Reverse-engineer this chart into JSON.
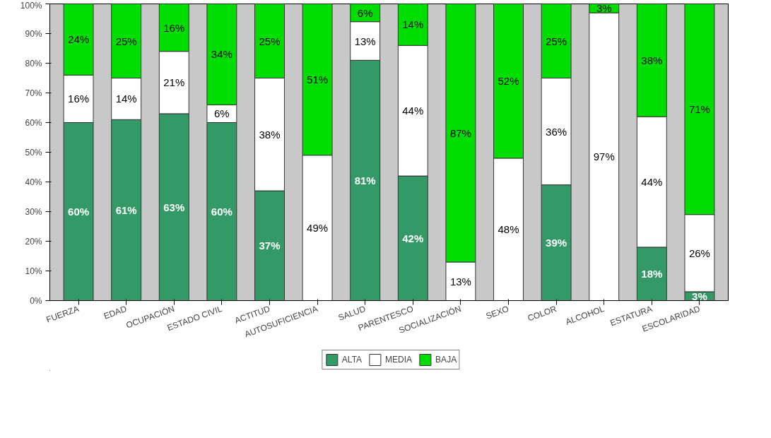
{
  "chart_data": {
    "type": "bar",
    "stacked": true,
    "categories": [
      "FUERZA",
      "EDAD",
      "OCUPACIÓN",
      "ESTADO CIVIL",
      "ACTITUD",
      "AUTOSUFICIENCIA",
      "SALUD",
      "PARENTESCO",
      "SOCIALIZACIÓN",
      "SEXO",
      "COLOR",
      "ALCOHOL",
      "ESTATURA",
      "ESCOLARIDAD"
    ],
    "series": [
      {
        "name": "ALTA",
        "color": "#339966",
        "values": [
          60,
          61,
          63,
          60,
          37,
          0,
          81,
          42,
          0,
          0,
          39,
          0,
          18,
          3
        ],
        "value_labels": [
          "60%",
          "61%",
          "63%",
          "60%",
          "37%",
          null,
          "81%",
          "42%",
          null,
          null,
          "39%",
          null,
          "18%",
          "3%"
        ]
      },
      {
        "name": "MEDIA",
        "color": "#ffffff",
        "values": [
          16,
          14,
          21,
          6,
          38,
          49,
          13,
          44,
          13,
          48,
          36,
          97,
          44,
          26
        ],
        "value_labels": [
          "16%",
          "14%",
          "21%",
          "6%",
          "38%",
          "49%",
          "13%",
          "44%",
          "13%",
          "48%",
          "36%",
          "97%",
          "44%",
          "26%"
        ]
      },
      {
        "name": "BAJA",
        "color": "#00dd00",
        "values": [
          24,
          25,
          16,
          34,
          25,
          51,
          6,
          14,
          87,
          52,
          25,
          3,
          38,
          71
        ],
        "value_labels": [
          "24%",
          "25%",
          "16%",
          "34%",
          "25%",
          "51%",
          "6%",
          "14%",
          "87%",
          "52%",
          "25%",
          "3%",
          "38%",
          "71%"
        ]
      }
    ],
    "ylim": [
      0,
      100
    ],
    "yticks": [
      {
        "value": 0,
        "label": "0%"
      },
      {
        "value": 10,
        "label": "10%"
      },
      {
        "value": 20,
        "label": "20%"
      },
      {
        "value": 30,
        "label": "30%"
      },
      {
        "value": 40,
        "label": "40%"
      },
      {
        "value": 50,
        "label": "50%"
      },
      {
        "value": 60,
        "label": "60%"
      },
      {
        "value": 70,
        "label": "70%"
      },
      {
        "value": 80,
        "label": "80%"
      },
      {
        "value": 90,
        "label": "90%"
      },
      {
        "value": 100,
        "label": "100%"
      }
    ],
    "grid": false,
    "legend": "bottom"
  }
}
